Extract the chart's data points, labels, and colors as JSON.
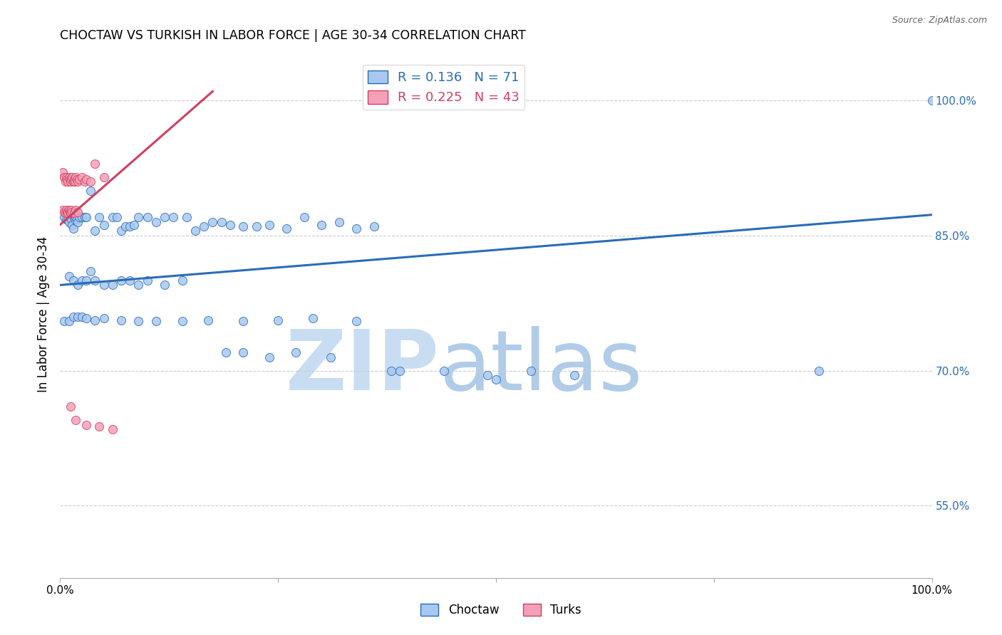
{
  "title": "CHOCTAW VS TURKISH IN LABOR FORCE | AGE 30-34 CORRELATION CHART",
  "source": "Source: ZipAtlas.com",
  "ylabel": "In Labor Force | Age 30-34",
  "legend_blue_r": "0.136",
  "legend_blue_n": "71",
  "legend_pink_r": "0.225",
  "legend_pink_n": "43",
  "blue_color": "#A8C8F0",
  "pink_color": "#F4A0B8",
  "blue_line_color": "#2B6CB8",
  "pink_line_color": "#D04060",
  "ylim_low": 0.47,
  "ylim_high": 1.055,
  "xlim_low": 0.0,
  "xlim_high": 1.0,
  "ytick_vals": [
    0.55,
    0.7,
    0.85,
    1.0
  ],
  "ytick_labels": [
    "55.0%",
    "70.0%",
    "85.0%",
    "100.0%"
  ],
  "blue_line": [
    0.0,
    1.0,
    0.795,
    0.873
  ],
  "pink_line": [
    0.0,
    0.175,
    0.862,
    1.01
  ],
  "choctaw_x": [
    0.005,
    0.007,
    0.009,
    0.01,
    0.011,
    0.012,
    0.013,
    0.014,
    0.015,
    0.016,
    0.017,
    0.018,
    0.019,
    0.02,
    0.022,
    0.025,
    0.028,
    0.03,
    0.035,
    0.04,
    0.045,
    0.05,
    0.06,
    0.065,
    0.07,
    0.075,
    0.08,
    0.085,
    0.09,
    0.1,
    0.11,
    0.12,
    0.13,
    0.145,
    0.155,
    0.165,
    0.175,
    0.185,
    0.195,
    0.21,
    0.225,
    0.24,
    0.26,
    0.28,
    0.3,
    0.32,
    0.34,
    0.36,
    0.01,
    0.015,
    0.02,
    0.025,
    0.03,
    0.035,
    0.04,
    0.05,
    0.06,
    0.07,
    0.08,
    0.09,
    0.1,
    0.12,
    0.14,
    0.19,
    0.21,
    0.24,
    0.27,
    0.31,
    0.38,
    0.5
  ],
  "choctaw_y": [
    0.87,
    0.868,
    0.867,
    0.865,
    0.875,
    0.87,
    0.868,
    0.862,
    0.858,
    0.87,
    0.868,
    0.87,
    0.868,
    0.865,
    0.87,
    0.87,
    0.87,
    0.87,
    0.9,
    0.855,
    0.87,
    0.862,
    0.87,
    0.87,
    0.855,
    0.86,
    0.86,
    0.862,
    0.87,
    0.87,
    0.865,
    0.87,
    0.87,
    0.87,
    0.855,
    0.86,
    0.865,
    0.865,
    0.862,
    0.86,
    0.86,
    0.862,
    0.858,
    0.87,
    0.862,
    0.865,
    0.858,
    0.86,
    0.805,
    0.8,
    0.795,
    0.8,
    0.8,
    0.81,
    0.8,
    0.795,
    0.795,
    0.8,
    0.8,
    0.795,
    0.8,
    0.795,
    0.8,
    0.72,
    0.72,
    0.715,
    0.72,
    0.715,
    0.7,
    0.69
  ],
  "choctaw_x2": [
    0.005,
    0.01,
    0.015,
    0.02,
    0.025,
    0.03,
    0.04,
    0.05,
    0.07,
    0.09,
    0.11,
    0.14,
    0.17,
    0.21,
    0.25,
    0.29,
    0.34,
    0.39,
    0.44,
    0.49,
    0.54,
    0.59,
    0.87,
    1.0
  ],
  "choctaw_y2": [
    0.755,
    0.755,
    0.76,
    0.76,
    0.76,
    0.758,
    0.756,
    0.758,
    0.756,
    0.755,
    0.755,
    0.755,
    0.756,
    0.755,
    0.756,
    0.758,
    0.755,
    0.7,
    0.7,
    0.695,
    0.7,
    0.695,
    0.7,
    1.0
  ],
  "turks_x": [
    0.003,
    0.005,
    0.006,
    0.007,
    0.008,
    0.009,
    0.01,
    0.011,
    0.012,
    0.013,
    0.014,
    0.015,
    0.016,
    0.017,
    0.018,
    0.019,
    0.02,
    0.022,
    0.025,
    0.028,
    0.03,
    0.035,
    0.04,
    0.05,
    0.003,
    0.005,
    0.006,
    0.007,
    0.008,
    0.009,
    0.01,
    0.011,
    0.012,
    0.013,
    0.014,
    0.016,
    0.018,
    0.02,
    0.012,
    0.018,
    0.03,
    0.045,
    0.06
  ],
  "turks_y": [
    0.92,
    0.915,
    0.91,
    0.915,
    0.912,
    0.91,
    0.915,
    0.912,
    0.91,
    0.912,
    0.915,
    0.91,
    0.912,
    0.91,
    0.915,
    0.912,
    0.91,
    0.912,
    0.915,
    0.91,
    0.912,
    0.91,
    0.93,
    0.915,
    0.878,
    0.876,
    0.875,
    0.878,
    0.876,
    0.875,
    0.878,
    0.876,
    0.875,
    0.878,
    0.876,
    0.875,
    0.878,
    0.876,
    0.66,
    0.645,
    0.64,
    0.638,
    0.635
  ]
}
